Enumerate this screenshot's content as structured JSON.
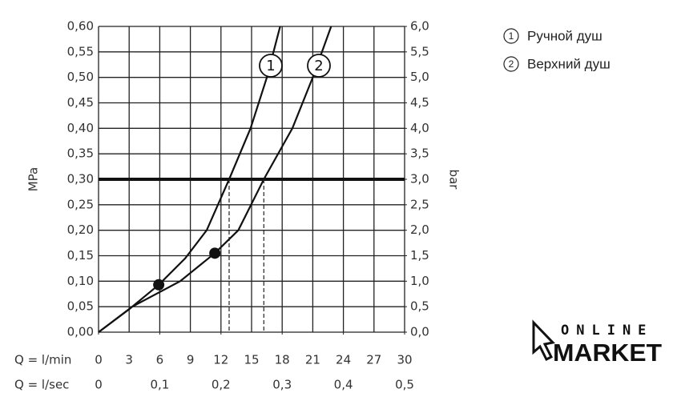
{
  "chart_data": {
    "type": "line",
    "ylabel": "MPa",
    "y2label": "bar",
    "xlabel": "Q = l/min",
    "x2label": "Q = l/sec",
    "xlim": [
      0,
      30
    ],
    "xticks": [
      0,
      3,
      6,
      9,
      12,
      15,
      18,
      21,
      24,
      27,
      30
    ],
    "x2lim": [
      0,
      0.5
    ],
    "x2ticks": [
      0,
      {
        "value": 0.1,
        "label": "0,1"
      },
      {
        "value": 0.2,
        "label": "0,2"
      },
      {
        "value": 0.3,
        "label": "0,3"
      },
      {
        "value": 0.4,
        "label": "0,4"
      },
      {
        "value": 0.5,
        "label": "0,5"
      }
    ],
    "ylim": [
      0,
      0.6
    ],
    "yticks": [
      {
        "value": 0,
        "label": "0,00"
      },
      {
        "value": 0.05,
        "label": "0,05"
      },
      {
        "value": 0.1,
        "label": "0,10"
      },
      {
        "value": 0.15,
        "label": "0,15"
      },
      {
        "value": 0.2,
        "label": "0,20"
      },
      {
        "value": 0.25,
        "label": "0,25"
      },
      {
        "value": 0.3,
        "label": "0,30"
      },
      {
        "value": 0.35,
        "label": "0,35"
      },
      {
        "value": 0.4,
        "label": "0,40"
      },
      {
        "value": 0.45,
        "label": "0,45"
      },
      {
        "value": 0.5,
        "label": "0,50"
      },
      {
        "value": 0.55,
        "label": "0,55"
      },
      {
        "value": 0.6,
        "label": "0,60"
      }
    ],
    "y2lim": [
      0,
      6
    ],
    "y2ticks": [
      {
        "value": 0,
        "label": "0,0"
      },
      {
        "value": 0.5,
        "label": "0,5"
      },
      {
        "value": 1,
        "label": "1,0"
      },
      {
        "value": 1.5,
        "label": "1,5"
      },
      {
        "value": 2,
        "label": "2,0"
      },
      {
        "value": 2.5,
        "label": "2,5"
      },
      {
        "value": 3,
        "label": "3,0"
      },
      {
        "value": 3.5,
        "label": "3,5"
      },
      {
        "value": 4,
        "label": "4,0"
      },
      {
        "value": 4.5,
        "label": "4,5"
      },
      {
        "value": 5,
        "label": "5,0"
      },
      {
        "value": 5.5,
        "label": "5,5"
      },
      {
        "value": 6,
        "label": "6,0"
      }
    ],
    "grid": true,
    "reference_y": 0.3,
    "series": [
      {
        "name": "Ручной душ",
        "label": "1",
        "color": "#111",
        "x": [
          0,
          3,
          5.9,
          8.5,
          10.6,
          12.8,
          14.9,
          16.5,
          17.8
        ],
        "values": [
          0,
          0.045,
          0.093,
          0.145,
          0.2,
          0.3,
          0.4,
          0.5,
          0.6
        ],
        "dot": {
          "x": 5.9,
          "y": 0.093
        }
      },
      {
        "name": "Верхний душ",
        "label": "2",
        "color": "#111",
        "x": [
          0,
          3.3,
          8,
          11.4,
          13.7,
          16.2,
          19,
          21,
          22.8
        ],
        "values": [
          0,
          0.05,
          0.1,
          0.155,
          0.2,
          0.3,
          0.4,
          0.5,
          0.6
        ],
        "dot": {
          "x": 11.4,
          "y": 0.155
        }
      }
    ],
    "watermark": {
      "line1": "ONLINE",
      "line2": "MARKET"
    }
  }
}
